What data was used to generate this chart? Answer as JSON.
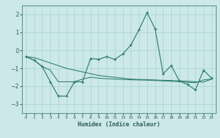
{
  "xlabel": "Humidex (Indice chaleur)",
  "ylabel": "",
  "background_color": "#cce8e8",
  "grid_color": "#aad4d4",
  "line_color": "#2e7d6e",
  "x": [
    0,
    1,
    2,
    3,
    4,
    5,
    6,
    7,
    8,
    9,
    10,
    11,
    12,
    13,
    14,
    15,
    16,
    17,
    18,
    19,
    20,
    21,
    22,
    23
  ],
  "y_main": [
    -0.35,
    -0.55,
    -0.9,
    -1.75,
    -2.55,
    -2.55,
    -1.75,
    -1.75,
    -0.45,
    -0.5,
    -0.35,
    -0.5,
    -0.2,
    0.3,
    1.15,
    2.1,
    1.2,
    -1.3,
    -0.85,
    -1.7,
    -1.9,
    -2.2,
    -1.1,
    -1.55
  ],
  "y_line1": [
    -0.35,
    -0.4,
    -0.55,
    -0.7,
    -0.85,
    -1.0,
    -1.1,
    -1.2,
    -1.3,
    -1.4,
    -1.45,
    -1.5,
    -1.55,
    -1.6,
    -1.62,
    -1.63,
    -1.65,
    -1.67,
    -1.68,
    -1.7,
    -1.72,
    -1.75,
    -1.77,
    -1.6
  ],
  "y_line2": [
    -0.35,
    -0.55,
    -0.9,
    -1.1,
    -1.75,
    -1.75,
    -1.75,
    -1.6,
    -1.5,
    -1.55,
    -1.58,
    -1.6,
    -1.62,
    -1.64,
    -1.65,
    -1.66,
    -1.68,
    -1.7,
    -1.72,
    -1.75,
    -1.78,
    -1.8,
    -1.65,
    -1.6
  ],
  "ylim": [
    -3.5,
    2.5
  ],
  "xlim": [
    -0.5,
    23.5
  ],
  "yticks": [
    -3,
    -2,
    -1,
    0,
    1,
    2
  ],
  "xtick_labels": [
    "0",
    "1",
    "2",
    "3",
    "4",
    "5",
    "6",
    "7",
    "8",
    "9",
    "10",
    "11",
    "12",
    "13",
    "14",
    "15",
    "16",
    "17",
    "18",
    "19",
    "20",
    "21",
    "22",
    "23"
  ]
}
